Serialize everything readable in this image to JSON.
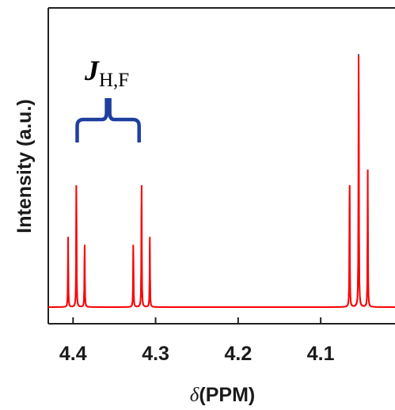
{
  "chart_data": {
    "type": "line",
    "xlabel_prefix": "δ",
    "xlabel": "(PPM)",
    "ylabel": "Intensity (a.u.)",
    "xlim": [
      4.43,
      4.01
    ],
    "ylim": [
      -0.03,
      1.05
    ],
    "x_reversed": true,
    "grid": false,
    "x_ticks": [
      4.4,
      4.3,
      4.2,
      4.1
    ],
    "x_tick_labels": [
      "4.4",
      "4.3",
      "4.2",
      "4.1"
    ],
    "annotation": {
      "label_main": "J",
      "label_sub": "H,F",
      "bracket_from": 4.395,
      "bracket_to": 4.32
    },
    "series": [
      {
        "color": "#ff0000",
        "width": 0.00028,
        "peaks": [
          {
            "x": 4.406,
            "h": 0.24
          },
          {
            "x": 4.396,
            "h": 0.47
          },
          {
            "x": 4.386,
            "h": 0.24
          },
          {
            "x": 4.327,
            "h": 0.24
          },
          {
            "x": 4.317,
            "h": 0.47
          },
          {
            "x": 4.307,
            "h": 0.24
          },
          {
            "x": 4.065,
            "h": 0.47
          },
          {
            "x": 4.054,
            "h": 0.97
          },
          {
            "x": 4.043,
            "h": 0.47
          }
        ]
      },
      {
        "color": "#2030c0",
        "width": 0.00032,
        "peaks": [
          {
            "x": 4.406,
            "h": 0.22
          },
          {
            "x": 4.396,
            "h": 0.45
          },
          {
            "x": 4.386,
            "h": 0.22
          },
          {
            "x": 4.327,
            "h": 0.22
          },
          {
            "x": 4.317,
            "h": 0.45
          },
          {
            "x": 4.307,
            "h": 0.22
          },
          {
            "x": 4.065,
            "h": 0.45
          },
          {
            "x": 4.054,
            "h": 0.95
          },
          {
            "x": 4.043,
            "h": 0.45
          }
        ]
      }
    ]
  }
}
